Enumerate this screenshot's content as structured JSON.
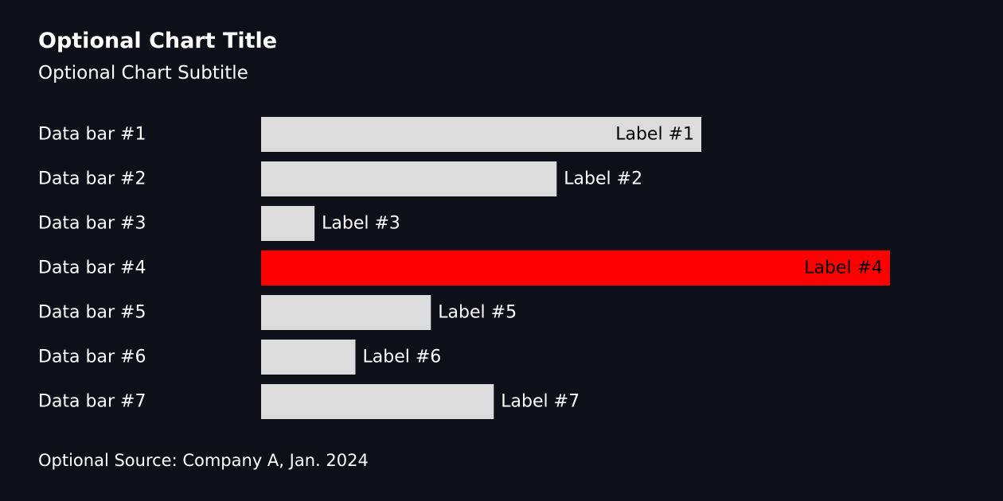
{
  "chart_data": {
    "type": "bar",
    "orientation": "horizontal",
    "title": "Optional Chart Title",
    "subtitle": "Optional Chart Subtitle",
    "source": "Optional Source: Company A, Jan. 2024",
    "categories": [
      "Data bar #1",
      "Data bar #2",
      "Data bar #3",
      "Data bar #4",
      "Data bar #5",
      "Data bar #6",
      "Data bar #7"
    ],
    "values": [
      70,
      47,
      8.5,
      100,
      27,
      15,
      37
    ],
    "data_labels": [
      "Label #1",
      "Label #2",
      "Label #3",
      "Label #4",
      "Label #5",
      "Label #6",
      "Label #7"
    ],
    "label_inside": [
      true,
      false,
      false,
      true,
      false,
      false,
      false
    ],
    "highlight_index": 3,
    "xlim": [
      0,
      100
    ],
    "grid": false,
    "legend": "none"
  },
  "colors": {
    "background": "#0d1018",
    "bar": "#dcdcdc",
    "highlight": "#ff0000",
    "text": "#ffffff",
    "label_inside_text": "#000000"
  }
}
